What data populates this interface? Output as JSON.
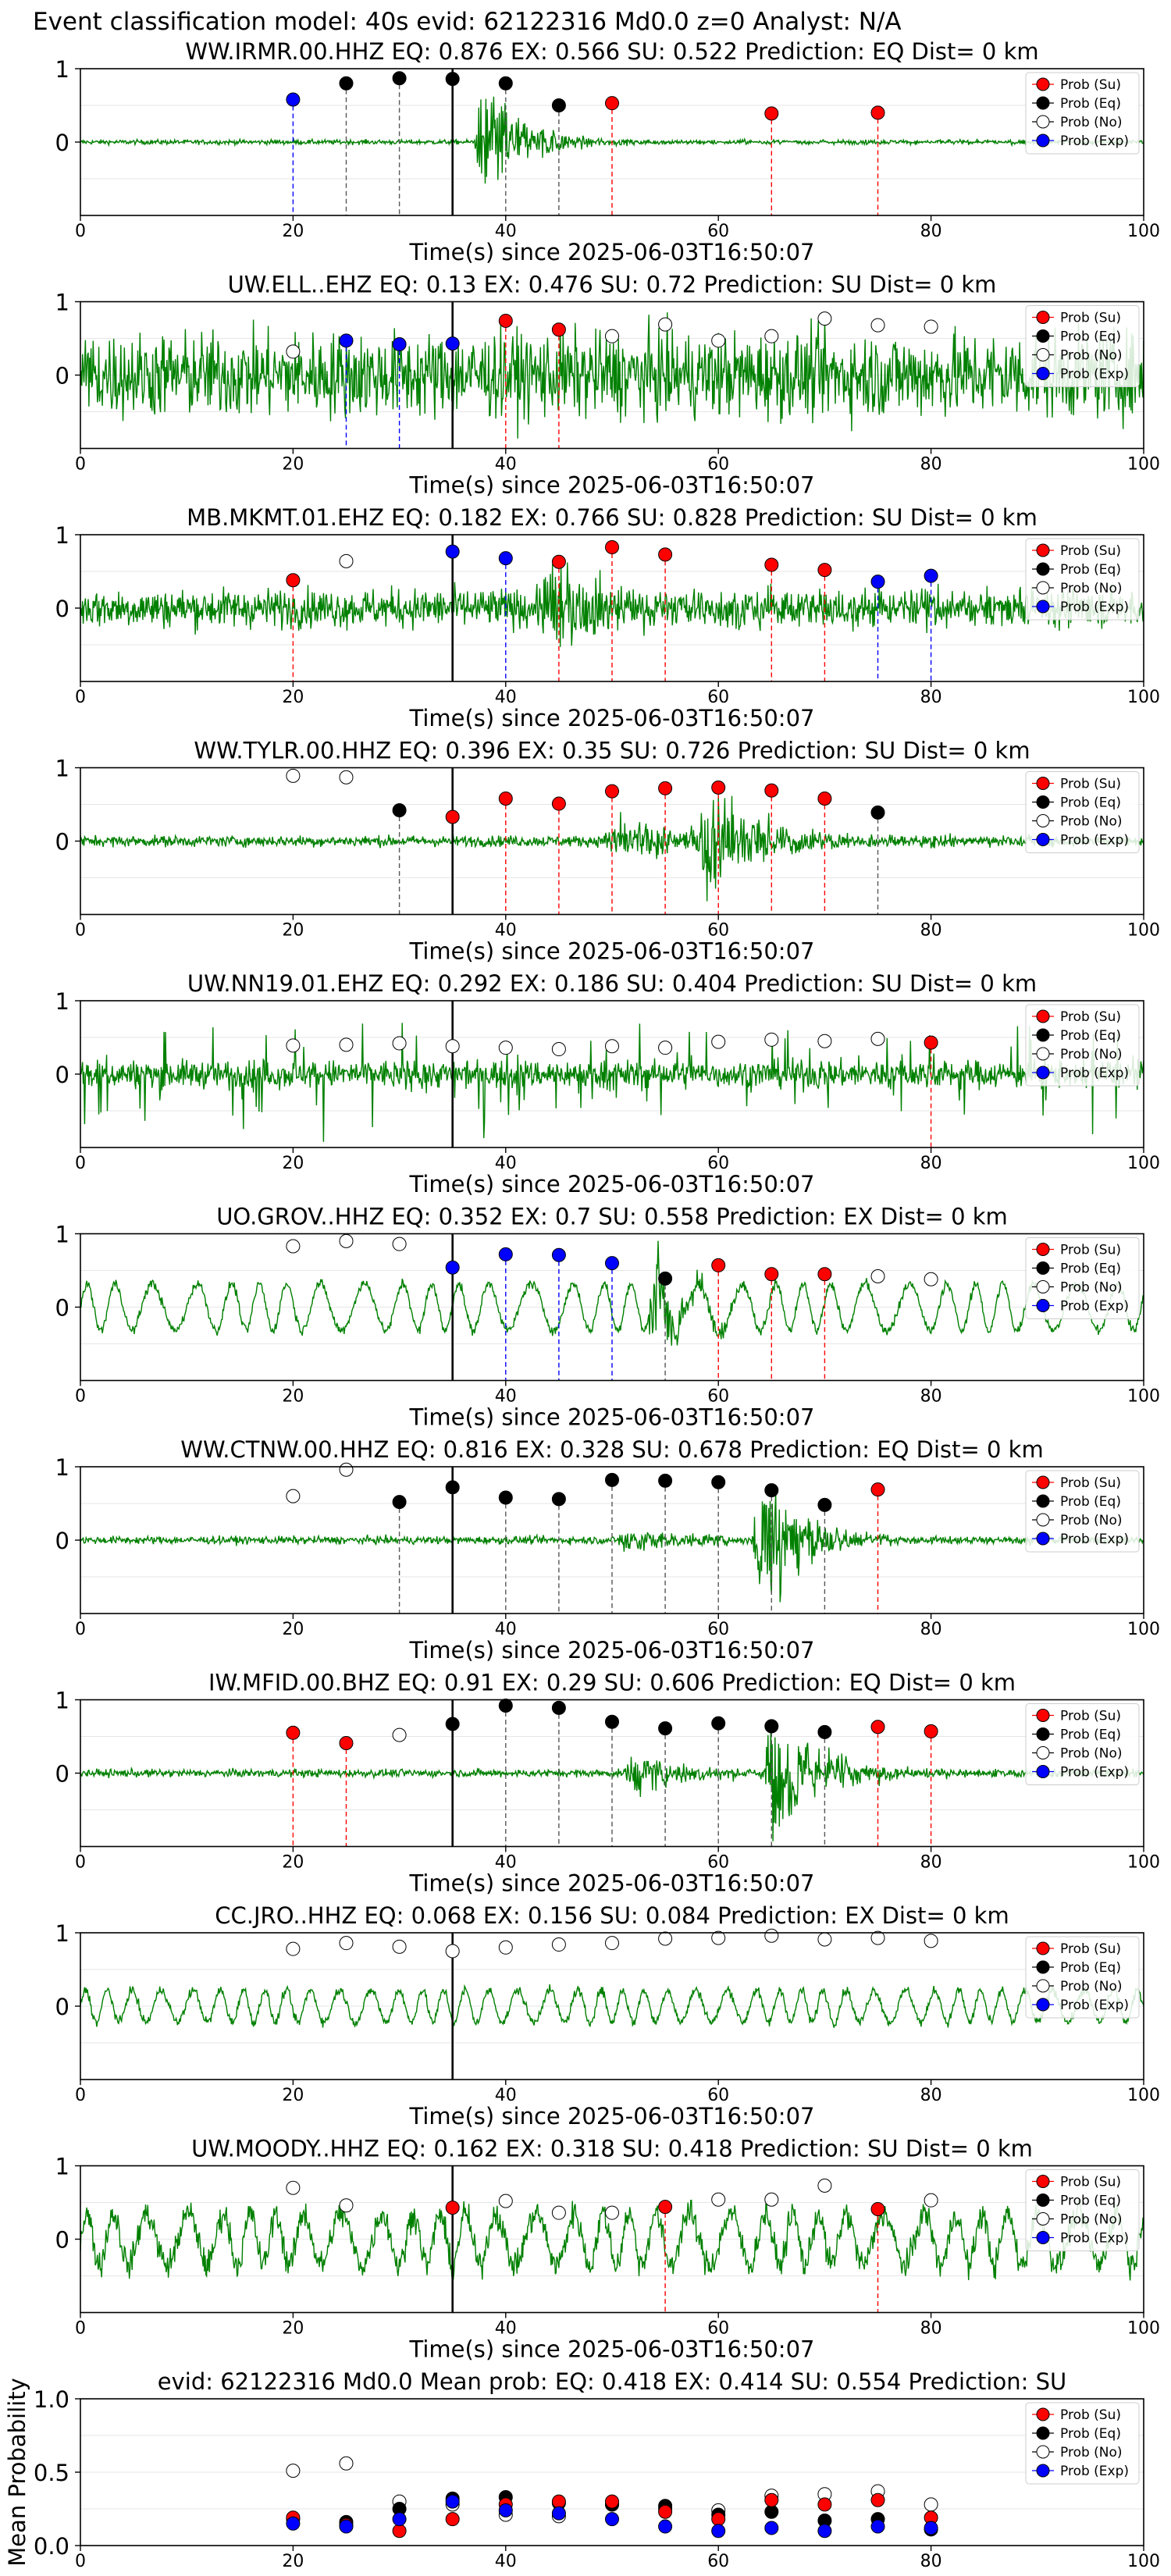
{
  "figure": {
    "suptitle": "Event classification model: 40s evid: 62122316 Md0.0 z=0 Analyst: N/A"
  },
  "legend_labels": [
    "Prob (Su)",
    "Prob (Eq)",
    "Prob (No)",
    "Prob (Exp)"
  ],
  "colors": {
    "su": "#ff0000",
    "eq": "#000000",
    "no": "#ffffff",
    "exp": "#0000ff",
    "waveform": "#008000",
    "pick_line": "#000000"
  },
  "chart_data": [
    {
      "type": "line",
      "title": "WW.IRMR.00.HHZ   EQ: 0.876  EX: 0.566  SU: 0.522   Prediction: EQ    Dist= 0 km",
      "xlabel": "Time(s) since 2025-06-03T16:50:07",
      "xlim": [
        0,
        100
      ],
      "ylim": [
        -1,
        1
      ],
      "xticks": [
        0,
        20,
        40,
        60,
        80,
        100
      ],
      "yticks": [
        0,
        1
      ],
      "pick_time": 35,
      "waveform": {
        "noise": 0.03,
        "bursts": [
          {
            "t": 38,
            "amp": 0.9,
            "dur": 6
          }
        ],
        "period": 0
      },
      "points": [
        {
          "t": 20,
          "p": 0.58,
          "cls": "exp"
        },
        {
          "t": 25,
          "p": 0.8,
          "cls": "eq"
        },
        {
          "t": 30,
          "p": 0.87,
          "cls": "eq"
        },
        {
          "t": 35,
          "p": 0.86,
          "cls": "eq"
        },
        {
          "t": 40,
          "p": 0.8,
          "cls": "eq"
        },
        {
          "t": 45,
          "p": 0.5,
          "cls": "eq"
        },
        {
          "t": 50,
          "p": 0.53,
          "cls": "su"
        },
        {
          "t": 65,
          "p": 0.39,
          "cls": "su"
        },
        {
          "t": 75,
          "p": 0.4,
          "cls": "su"
        }
      ],
      "legend": "upper right",
      "grid": true
    },
    {
      "type": "line",
      "title": "UW.ELL..EHZ   EQ: 0.13  EX: 0.476  SU: 0.72   Prediction: SU    Dist= 0 km",
      "xlabel": "Time(s) since 2025-06-03T16:50:07",
      "xlim": [
        0,
        100
      ],
      "ylim": [
        -1,
        1
      ],
      "xticks": [
        0,
        20,
        40,
        60,
        80,
        100
      ],
      "yticks": [
        0,
        1
      ],
      "pick_time": 35,
      "waveform": {
        "noise": 0.55,
        "bursts": [],
        "period": 0
      },
      "points": [
        {
          "t": 20,
          "p": 0.32,
          "cls": "no"
        },
        {
          "t": 25,
          "p": 0.47,
          "cls": "exp"
        },
        {
          "t": 30,
          "p": 0.42,
          "cls": "exp"
        },
        {
          "t": 35,
          "p": 0.43,
          "cls": "exp"
        },
        {
          "t": 40,
          "p": 0.74,
          "cls": "su"
        },
        {
          "t": 45,
          "p": 0.62,
          "cls": "su"
        },
        {
          "t": 50,
          "p": 0.53,
          "cls": "no"
        },
        {
          "t": 55,
          "p": 0.69,
          "cls": "no"
        },
        {
          "t": 60,
          "p": 0.47,
          "cls": "no"
        },
        {
          "t": 65,
          "p": 0.53,
          "cls": "no"
        },
        {
          "t": 70,
          "p": 0.77,
          "cls": "no"
        },
        {
          "t": 75,
          "p": 0.68,
          "cls": "no"
        },
        {
          "t": 80,
          "p": 0.66,
          "cls": "no"
        }
      ],
      "legend": "upper right",
      "grid": true
    },
    {
      "type": "line",
      "title": "MB.MKMT.01.EHZ   EQ: 0.182  EX: 0.766  SU: 0.828   Prediction: SU    Dist= 0 km",
      "xlabel": "Time(s) since 2025-06-03T16:50:07",
      "xlim": [
        0,
        100
      ],
      "ylim": [
        -1,
        1
      ],
      "xticks": [
        0,
        20,
        40,
        60,
        80,
        100
      ],
      "yticks": [
        0,
        1
      ],
      "pick_time": 35,
      "waveform": {
        "noise": 0.25,
        "bursts": [
          {
            "t": 44,
            "amp": 0.6,
            "dur": 10
          }
        ],
        "period": 0
      },
      "points": [
        {
          "t": 20,
          "p": 0.38,
          "cls": "su"
        },
        {
          "t": 25,
          "p": 0.64,
          "cls": "no"
        },
        {
          "t": 35,
          "p": 0.77,
          "cls": "exp"
        },
        {
          "t": 40,
          "p": 0.68,
          "cls": "exp"
        },
        {
          "t": 45,
          "p": 0.63,
          "cls": "su"
        },
        {
          "t": 50,
          "p": 0.83,
          "cls": "su"
        },
        {
          "t": 55,
          "p": 0.73,
          "cls": "su"
        },
        {
          "t": 65,
          "p": 0.59,
          "cls": "su"
        },
        {
          "t": 70,
          "p": 0.52,
          "cls": "su"
        },
        {
          "t": 75,
          "p": 0.36,
          "cls": "exp"
        },
        {
          "t": 80,
          "p": 0.44,
          "cls": "exp"
        }
      ],
      "legend": "upper right",
      "grid": true
    },
    {
      "type": "line",
      "title": "WW.TYLR.00.HHZ   EQ: 0.396  EX: 0.35  SU: 0.726   Prediction: SU    Dist= 0 km",
      "xlabel": "Time(s) since 2025-06-03T16:50:07",
      "xlim": [
        0,
        100
      ],
      "ylim": [
        -1,
        1
      ],
      "xticks": [
        0,
        20,
        40,
        60,
        80,
        100
      ],
      "yticks": [
        0,
        1
      ],
      "pick_time": 35,
      "waveform": {
        "noise": 0.07,
        "bursts": [
          {
            "t": 50,
            "amp": 0.3,
            "dur": 20
          },
          {
            "t": 59,
            "amp": 0.85,
            "dur": 8
          }
        ],
        "period": 0
      },
      "points": [
        {
          "t": 20,
          "p": 0.89,
          "cls": "no"
        },
        {
          "t": 25,
          "p": 0.87,
          "cls": "no"
        },
        {
          "t": 30,
          "p": 0.42,
          "cls": "eq"
        },
        {
          "t": 35,
          "p": 0.33,
          "cls": "su"
        },
        {
          "t": 40,
          "p": 0.58,
          "cls": "su"
        },
        {
          "t": 45,
          "p": 0.51,
          "cls": "su"
        },
        {
          "t": 50,
          "p": 0.68,
          "cls": "su"
        },
        {
          "t": 55,
          "p": 0.72,
          "cls": "su"
        },
        {
          "t": 60,
          "p": 0.73,
          "cls": "su"
        },
        {
          "t": 65,
          "p": 0.69,
          "cls": "su"
        },
        {
          "t": 70,
          "p": 0.58,
          "cls": "su"
        },
        {
          "t": 75,
          "p": 0.39,
          "cls": "eq"
        }
      ],
      "legend": "upper right",
      "grid": true
    },
    {
      "type": "line",
      "title": "UW.NN19.01.EHZ   EQ: 0.292  EX: 0.186  SU: 0.404   Prediction: SU    Dist= 0 km",
      "xlabel": "Time(s) since 2025-06-03T16:50:07",
      "xlim": [
        0,
        100
      ],
      "ylim": [
        -1,
        1
      ],
      "xticks": [
        0,
        20,
        40,
        60,
        80,
        100
      ],
      "yticks": [
        0,
        1
      ],
      "pick_time": 35,
      "waveform": {
        "noise": 0.18,
        "bursts": [],
        "period": 0,
        "spikes": true
      },
      "points": [
        {
          "t": 20,
          "p": 0.39,
          "cls": "no"
        },
        {
          "t": 25,
          "p": 0.4,
          "cls": "no"
        },
        {
          "t": 30,
          "p": 0.42,
          "cls": "no"
        },
        {
          "t": 35,
          "p": 0.38,
          "cls": "no"
        },
        {
          "t": 40,
          "p": 0.36,
          "cls": "no"
        },
        {
          "t": 45,
          "p": 0.34,
          "cls": "no"
        },
        {
          "t": 50,
          "p": 0.38,
          "cls": "no"
        },
        {
          "t": 55,
          "p": 0.36,
          "cls": "no"
        },
        {
          "t": 60,
          "p": 0.44,
          "cls": "no"
        },
        {
          "t": 65,
          "p": 0.47,
          "cls": "no"
        },
        {
          "t": 70,
          "p": 0.45,
          "cls": "no"
        },
        {
          "t": 75,
          "p": 0.48,
          "cls": "no"
        },
        {
          "t": 80,
          "p": 0.43,
          "cls": "su"
        }
      ],
      "legend": "upper right",
      "grid": true
    },
    {
      "type": "line",
      "title": "UO.GROV..HHZ   EQ: 0.352  EX: 0.7  SU: 0.558   Prediction: EX    Dist= 0 km",
      "xlabel": "Time(s) since 2025-06-03T16:50:07",
      "xlim": [
        0,
        100
      ],
      "ylim": [
        -1,
        1
      ],
      "xticks": [
        0,
        20,
        40,
        60,
        80,
        100
      ],
      "yticks": [
        0,
        1
      ],
      "pick_time": 35,
      "waveform": {
        "noise": 0.06,
        "bursts": [
          {
            "t": 54,
            "amp": 0.7,
            "dur": 5
          }
        ],
        "period": 3.2,
        "period_amp": 0.32
      },
      "points": [
        {
          "t": 20,
          "p": 0.83,
          "cls": "no"
        },
        {
          "t": 25,
          "p": 0.9,
          "cls": "no"
        },
        {
          "t": 30,
          "p": 0.86,
          "cls": "no"
        },
        {
          "t": 35,
          "p": 0.54,
          "cls": "exp"
        },
        {
          "t": 40,
          "p": 0.72,
          "cls": "exp"
        },
        {
          "t": 45,
          "p": 0.71,
          "cls": "exp"
        },
        {
          "t": 50,
          "p": 0.6,
          "cls": "exp"
        },
        {
          "t": 55,
          "p": 0.39,
          "cls": "eq"
        },
        {
          "t": 60,
          "p": 0.57,
          "cls": "su"
        },
        {
          "t": 65,
          "p": 0.45,
          "cls": "su"
        },
        {
          "t": 70,
          "p": 0.45,
          "cls": "su"
        },
        {
          "t": 75,
          "p": 0.42,
          "cls": "no"
        },
        {
          "t": 80,
          "p": 0.38,
          "cls": "no"
        }
      ],
      "legend": "upper right",
      "grid": true
    },
    {
      "type": "line",
      "title": "WW.CTNW.00.HHZ   EQ: 0.816  EX: 0.328  SU: 0.678   Prediction: EQ    Dist= 0 km",
      "xlabel": "Time(s) since 2025-06-03T16:50:07",
      "xlim": [
        0,
        100
      ],
      "ylim": [
        -1,
        1
      ],
      "xticks": [
        0,
        20,
        40,
        60,
        80,
        100
      ],
      "yticks": [
        0,
        1
      ],
      "pick_time": 35,
      "waveform": {
        "noise": 0.05,
        "bursts": [
          {
            "t": 51,
            "amp": 0.2,
            "dur": 10
          },
          {
            "t": 64,
            "amp": 0.9,
            "dur": 7
          }
        ],
        "period": 0
      },
      "points": [
        {
          "t": 20,
          "p": 0.6,
          "cls": "no"
        },
        {
          "t": 25,
          "p": 0.96,
          "cls": "no"
        },
        {
          "t": 30,
          "p": 0.52,
          "cls": "eq"
        },
        {
          "t": 35,
          "p": 0.72,
          "cls": "eq"
        },
        {
          "t": 40,
          "p": 0.58,
          "cls": "eq"
        },
        {
          "t": 45,
          "p": 0.56,
          "cls": "eq"
        },
        {
          "t": 50,
          "p": 0.82,
          "cls": "eq"
        },
        {
          "t": 55,
          "p": 0.81,
          "cls": "eq"
        },
        {
          "t": 60,
          "p": 0.79,
          "cls": "eq"
        },
        {
          "t": 65,
          "p": 0.68,
          "cls": "eq"
        },
        {
          "t": 70,
          "p": 0.48,
          "cls": "eq"
        },
        {
          "t": 75,
          "p": 0.69,
          "cls": "su"
        }
      ],
      "legend": "upper right",
      "grid": true
    },
    {
      "type": "line",
      "title": "IW.MFID.00.BHZ   EQ: 0.91  EX: 0.29  SU: 0.606   Prediction: EQ    Dist= 0 km",
      "xlabel": "Time(s) since 2025-06-03T16:50:07",
      "xlim": [
        0,
        100
      ],
      "ylim": [
        -1,
        1
      ],
      "xticks": [
        0,
        20,
        40,
        60,
        80,
        100
      ],
      "yticks": [
        0,
        1
      ],
      "pick_time": 35,
      "waveform": {
        "noise": 0.05,
        "bursts": [
          {
            "t": 52,
            "amp": 0.3,
            "dur": 9
          },
          {
            "t": 65,
            "amp": 0.85,
            "dur": 8
          }
        ],
        "period": 0
      },
      "points": [
        {
          "t": 20,
          "p": 0.55,
          "cls": "su"
        },
        {
          "t": 25,
          "p": 0.41,
          "cls": "su"
        },
        {
          "t": 30,
          "p": 0.52,
          "cls": "no"
        },
        {
          "t": 35,
          "p": 0.67,
          "cls": "eq"
        },
        {
          "t": 40,
          "p": 0.92,
          "cls": "eq"
        },
        {
          "t": 45,
          "p": 0.89,
          "cls": "eq"
        },
        {
          "t": 50,
          "p": 0.7,
          "cls": "eq"
        },
        {
          "t": 55,
          "p": 0.61,
          "cls": "eq"
        },
        {
          "t": 60,
          "p": 0.68,
          "cls": "eq"
        },
        {
          "t": 65,
          "p": 0.64,
          "cls": "eq"
        },
        {
          "t": 70,
          "p": 0.56,
          "cls": "eq"
        },
        {
          "t": 75,
          "p": 0.63,
          "cls": "su"
        },
        {
          "t": 80,
          "p": 0.57,
          "cls": "su"
        }
      ],
      "legend": "upper right",
      "grid": true
    },
    {
      "type": "line",
      "title": "CC.JRO..HHZ   EQ: 0.068  EX: 0.156  SU: 0.084   Prediction: EX    Dist= 0 km",
      "xlabel": "Time(s) since 2025-06-03T16:50:07",
      "xlim": [
        0,
        100
      ],
      "ylim": [
        -1,
        1
      ],
      "xticks": [
        0,
        20,
        40,
        60,
        80,
        100
      ],
      "yticks": [
        0,
        1
      ],
      "pick_time": 35,
      "waveform": {
        "noise": 0.06,
        "bursts": [],
        "period": 2.4,
        "period_amp": 0.22
      },
      "points": [
        {
          "t": 20,
          "p": 0.78,
          "cls": "no"
        },
        {
          "t": 25,
          "p": 0.86,
          "cls": "no"
        },
        {
          "t": 30,
          "p": 0.81,
          "cls": "no"
        },
        {
          "t": 35,
          "p": 0.75,
          "cls": "no"
        },
        {
          "t": 40,
          "p": 0.8,
          "cls": "no"
        },
        {
          "t": 45,
          "p": 0.84,
          "cls": "no"
        },
        {
          "t": 50,
          "p": 0.86,
          "cls": "no"
        },
        {
          "t": 55,
          "p": 0.92,
          "cls": "no"
        },
        {
          "t": 60,
          "p": 0.93,
          "cls": "no"
        },
        {
          "t": 65,
          "p": 0.96,
          "cls": "no"
        },
        {
          "t": 70,
          "p": 0.91,
          "cls": "no"
        },
        {
          "t": 75,
          "p": 0.93,
          "cls": "no"
        },
        {
          "t": 80,
          "p": 0.89,
          "cls": "no"
        }
      ],
      "legend": "upper right",
      "grid": true
    },
    {
      "type": "line",
      "title": "UW.MOODY..HHZ   EQ: 0.162  EX: 0.318  SU: 0.418   Prediction: SU    Dist= 0 km",
      "xlabel": "Time(s) since 2025-06-03T16:50:07",
      "xlim": [
        0,
        100
      ],
      "ylim": [
        -1,
        1
      ],
      "xticks": [
        0,
        20,
        40,
        60,
        80,
        100
      ],
      "yticks": [
        0,
        1
      ],
      "pick_time": 35,
      "waveform": {
        "noise": 0.18,
        "bursts": [],
        "period": 3.0,
        "period_amp": 0.35
      },
      "points": [
        {
          "t": 20,
          "p": 0.7,
          "cls": "no"
        },
        {
          "t": 25,
          "p": 0.46,
          "cls": "no"
        },
        {
          "t": 35,
          "p": 0.43,
          "cls": "su"
        },
        {
          "t": 40,
          "p": 0.52,
          "cls": "no"
        },
        {
          "t": 45,
          "p": 0.36,
          "cls": "no"
        },
        {
          "t": 50,
          "p": 0.36,
          "cls": "no"
        },
        {
          "t": 55,
          "p": 0.44,
          "cls": "su"
        },
        {
          "t": 60,
          "p": 0.54,
          "cls": "no"
        },
        {
          "t": 65,
          "p": 0.54,
          "cls": "no"
        },
        {
          "t": 70,
          "p": 0.73,
          "cls": "no"
        },
        {
          "t": 75,
          "p": 0.41,
          "cls": "su"
        },
        {
          "t": 80,
          "p": 0.53,
          "cls": "no"
        }
      ],
      "legend": "upper right",
      "grid": true
    },
    {
      "type": "scatter",
      "title": "evid: 62122316  Md0.0   Mean prob:   EQ: 0.418  EX: 0.414  SU: 0.554   Prediction: SU",
      "ylabel": "Mean Probability",
      "xlim": [
        0,
        100
      ],
      "ylim": [
        0,
        1
      ],
      "xticks": [
        0,
        20,
        40,
        60,
        80,
        100
      ],
      "yticks": [
        0.0,
        0.5,
        1.0
      ],
      "ytick_labels": [
        "0.0",
        "0.5",
        "1.0"
      ],
      "x": [
        20,
        25,
        30,
        35,
        40,
        45,
        50,
        55,
        60,
        65,
        70,
        75,
        80
      ],
      "series": [
        {
          "cls": "no",
          "values": [
            0.51,
            0.56,
            0.3,
            0.28,
            0.21,
            0.2,
            0.28,
            0.25,
            0.24,
            0.34,
            0.35,
            0.37,
            0.28
          ]
        },
        {
          "cls": "eq",
          "values": [
            0.18,
            0.16,
            0.25,
            0.32,
            0.33,
            0.29,
            0.28,
            0.27,
            0.21,
            0.23,
            0.17,
            0.18,
            0.11
          ]
        },
        {
          "cls": "su",
          "values": [
            0.19,
            0.14,
            0.1,
            0.18,
            0.28,
            0.3,
            0.3,
            0.23,
            0.18,
            0.31,
            0.28,
            0.31,
            0.19
          ]
        },
        {
          "cls": "exp",
          "values": [
            0.15,
            0.13,
            0.18,
            0.3,
            0.24,
            0.22,
            0.18,
            0.13,
            0.1,
            0.12,
            0.1,
            0.13,
            0.12
          ]
        }
      ],
      "legend": "upper right",
      "grid": true
    }
  ]
}
